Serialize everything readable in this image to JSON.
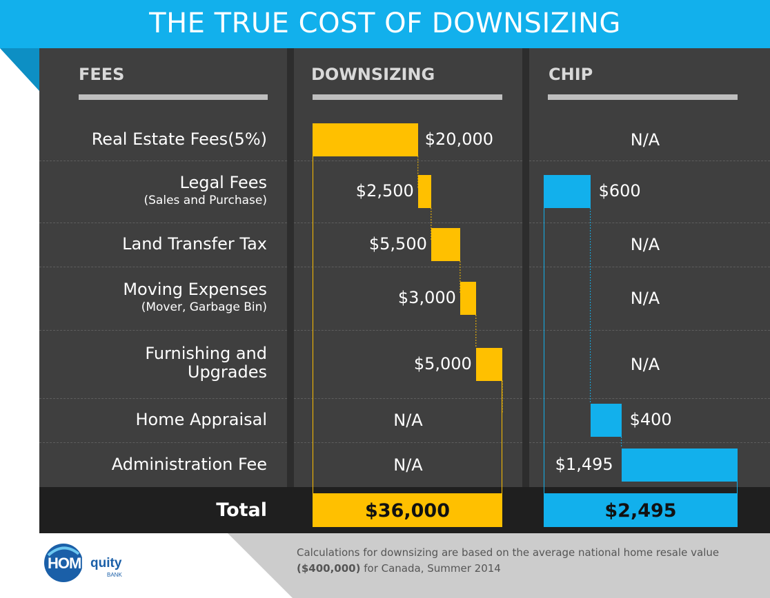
{
  "title": "THE TRUE COST OF DOWNSIZING",
  "headers": {
    "fees": "FEES",
    "downsizing": "DOWNSIZING",
    "chip": "CHIP"
  },
  "colors": {
    "downsizing": "#ffc000",
    "chip": "#12b0ec",
    "banner": "#12b0ec"
  },
  "chart_data": {
    "type": "bar",
    "title": "THE TRUE COST OF DOWNSIZING",
    "categories": [
      {
        "label": "Real Estate Fees(5%)",
        "sub": ""
      },
      {
        "label": "Legal Fees",
        "sub": "(Sales and Purchase)"
      },
      {
        "label": "Land Transfer Tax",
        "sub": ""
      },
      {
        "label": "Moving Expenses",
        "sub": "(Mover, Garbage Bin)"
      },
      {
        "label": "Furnishing and Upgrades",
        "sub": ""
      },
      {
        "label": "Home Appraisal",
        "sub": ""
      },
      {
        "label": "Administration Fee",
        "sub": ""
      }
    ],
    "series": [
      {
        "name": "DOWNSIZING",
        "values": [
          20000,
          2500,
          5500,
          3000,
          5000,
          null,
          null
        ],
        "labels": [
          "$20,000",
          "$2,500",
          "$5,500",
          "$3,000",
          "$5,000",
          "N/A",
          "N/A"
        ],
        "total": 36000,
        "total_label": "$36,000"
      },
      {
        "name": "CHIP",
        "values": [
          null,
          600,
          null,
          null,
          null,
          400,
          1495
        ],
        "labels": [
          "N/A",
          "$600",
          "N/A",
          "N/A",
          "N/A",
          "$400",
          "$1,495"
        ],
        "total": 2495,
        "total_label": "$2,495"
      }
    ],
    "total_row_label": "Total"
  },
  "footnote": {
    "line1": "Calculations for downsizing are based on the average national home resale value",
    "line2_bold": "($400,000)",
    "line2_rest": " for Canada, Summer 2014"
  },
  "logo": {
    "home": "HOME",
    "equity": "quity",
    "bank": "BANK"
  }
}
